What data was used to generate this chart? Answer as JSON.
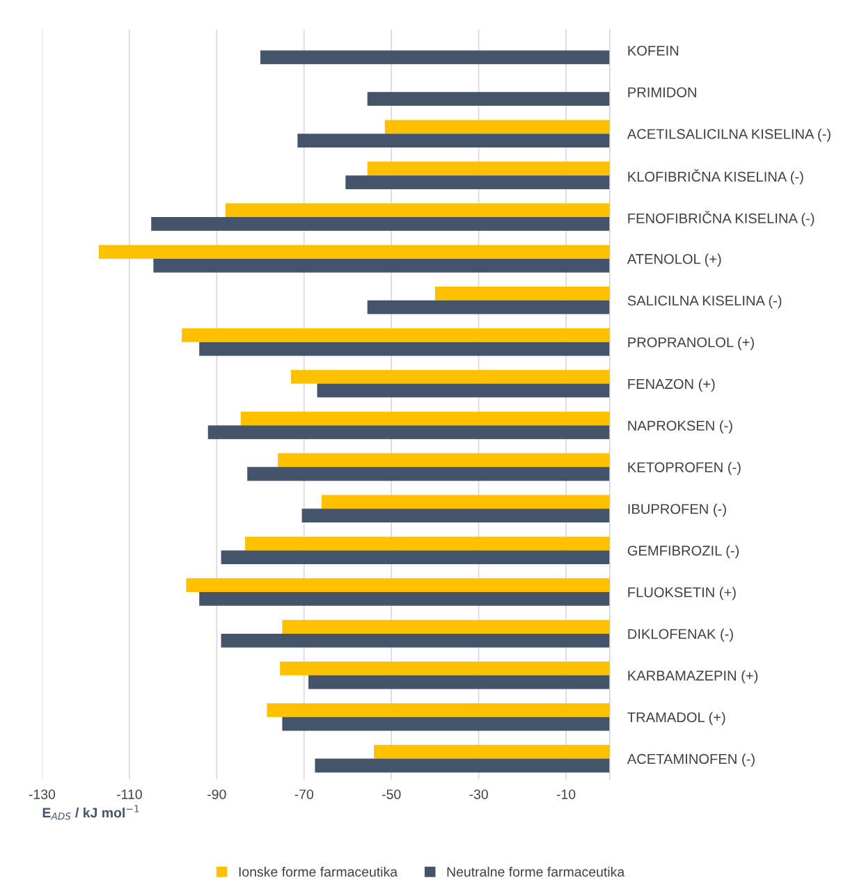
{
  "chart_data": {
    "type": "bar",
    "orientation": "horizontal",
    "categories": [
      "KOFEIN",
      "PRIMIDON",
      "ACETILSALICILNA KISELINA (-)",
      "KLOFIBRIČNA KISELINA (-)",
      "FENOFIBRIČNA KISELINA (-)",
      "ATENOLOL (+)",
      "SALICILNA KISELINA (-)",
      "PROPRANOLOL (+)",
      "FENAZON (+)",
      "NAPROKSEN (-)",
      "KETOPROFEN (-)",
      "IBUPROFEN (-)",
      "GEMFIBROZIL (-)",
      "FLUOKSETIN (+)",
      "DIKLOFENAK (-)",
      "KARBAMAZEPIN (+)",
      "TRAMADOL (+)",
      "ACETAMINOFEN (-)"
    ],
    "series": [
      {
        "name": "Ionske forme farmaceutika",
        "color": "#ffc000",
        "values": [
          null,
          null,
          -51.5,
          -55.5,
          -88,
          -117,
          -40,
          -98,
          -73,
          -84.5,
          -76,
          -66,
          -83.5,
          -97,
          -75,
          -75.5,
          -78.5,
          -54
        ]
      },
      {
        "name": "Neutralne forme farmaceutika",
        "color": "#44546a",
        "values": [
          -80,
          -55.5,
          -71.5,
          -60.5,
          -105,
          -104.5,
          -55.5,
          -94,
          -67,
          -92,
          -83,
          -70.5,
          -89,
          -94,
          -89,
          -69,
          -75,
          -67.5
        ]
      }
    ],
    "xlabel": "E$_{ADS}$ / kJ mol$^{−1}$",
    "xlim": [
      -130,
      0
    ],
    "xticks": [
      -130,
      -110,
      -90,
      -70,
      -50,
      -30,
      -10
    ],
    "grid": "x",
    "legend": "bottom"
  }
}
